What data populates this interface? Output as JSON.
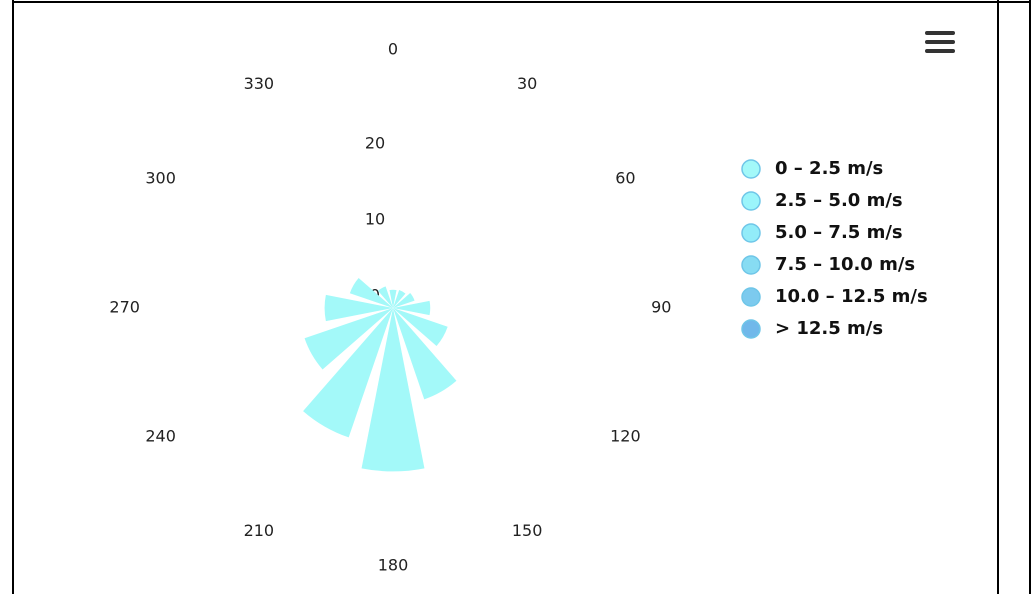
{
  "chart_data": {
    "type": "windrose",
    "categories": [
      "0",
      "30",
      "60",
      "90",
      "120",
      "150",
      "180",
      "210",
      "240",
      "270",
      "300",
      "330"
    ],
    "series": [
      {
        "name": "0 – 2.5 m/s",
        "color": "#a3f9f9",
        "values": [
          2.4,
          2.5,
          3,
          4.9,
          7.6,
          12.7,
          21.5,
          18,
          12.3,
          9,
          6,
          3
        ]
      },
      {
        "name": "2.5 – 5.0 m/s",
        "color": "#9bf5fb",
        "values": [
          0,
          0,
          0,
          0,
          0,
          0,
          0,
          0,
          0,
          0,
          0,
          0
        ]
      },
      {
        "name": "5.0 – 7.5 m/s",
        "color": "#92ecf9",
        "values": [
          0,
          0,
          0,
          0,
          0,
          0,
          0,
          0,
          0,
          0,
          0,
          0
        ]
      },
      {
        "name": "7.5 – 10.0 m/s",
        "color": "#87dcf3",
        "values": [
          0,
          0,
          0,
          0,
          0,
          0,
          0,
          0,
          0,
          0,
          0,
          0
        ]
      },
      {
        "name": "10.0 – 12.5 m/s",
        "color": "#7ccaee",
        "values": [
          0,
          0,
          0,
          0,
          0,
          0,
          0,
          0,
          0,
          0,
          0,
          0
        ]
      },
      {
        "name": "> 12.5 m/s",
        "color": "#70b8ea",
        "values": [
          0,
          0,
          0,
          0,
          0,
          0,
          0,
          0,
          0,
          0,
          0,
          0
        ]
      }
    ],
    "ylim": [
      0,
      30
    ],
    "yticks": [
      0,
      10,
      20
    ]
  }
}
